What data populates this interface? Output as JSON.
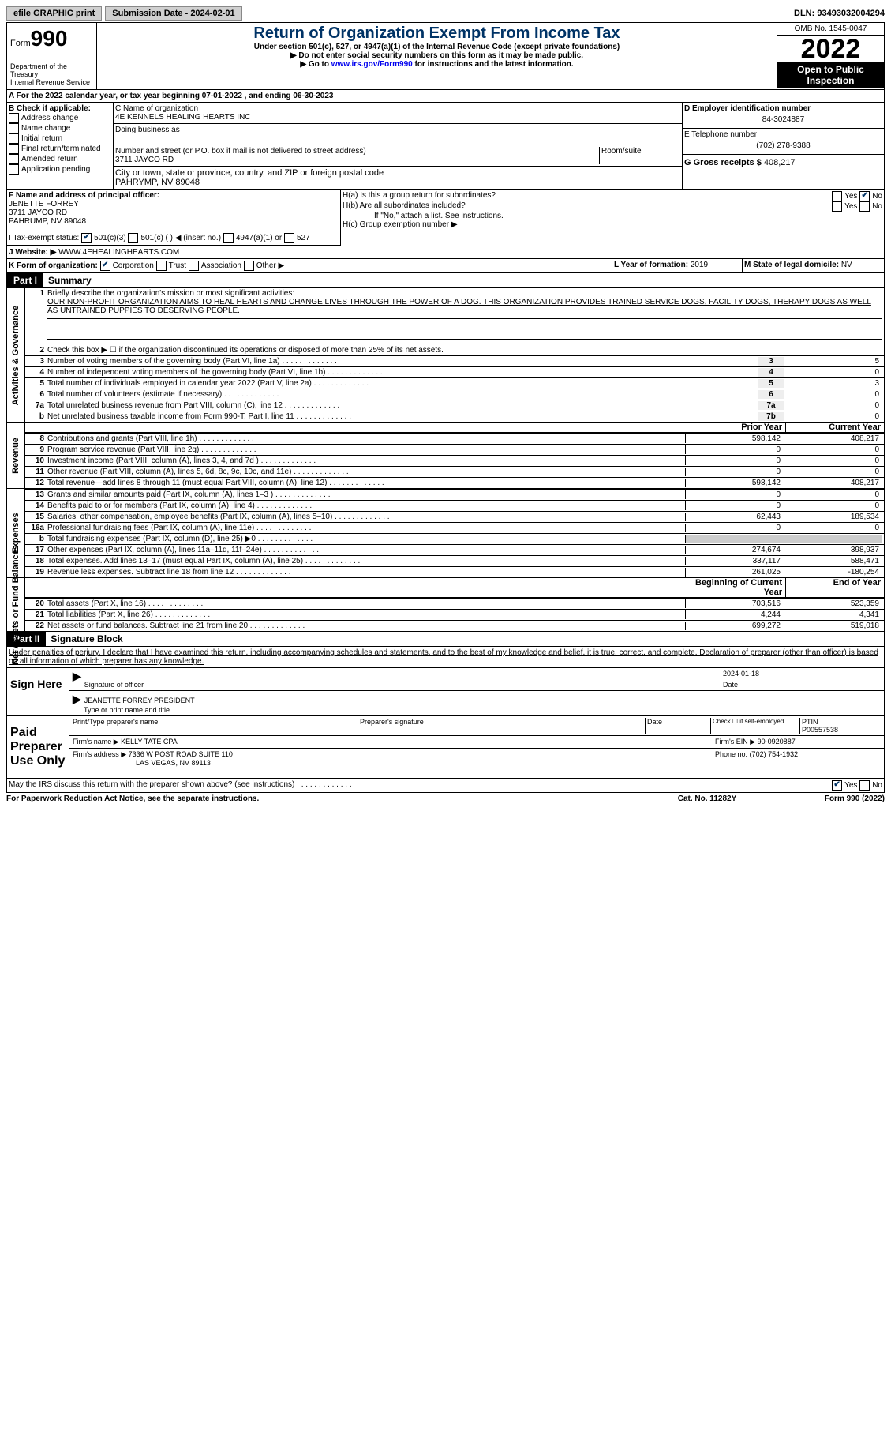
{
  "header": {
    "efile_label": "efile GRAPHIC print",
    "submission_label": "Submission Date - 2024-02-01",
    "dln_label": "DLN: 93493032004294"
  },
  "form": {
    "form_label": "Form",
    "form_num": "990",
    "dept": "Department of the Treasury",
    "irs": "Internal Revenue Service",
    "title": "Return of Organization Exempt From Income Tax",
    "sub1": "Under section 501(c), 527, or 4947(a)(1) of the Internal Revenue Code (except private foundations)",
    "sub2": "▶ Do not enter social security numbers on this form as it may be made public.",
    "sub3_pre": "▶ Go to ",
    "sub3_link": "www.irs.gov/Form990",
    "sub3_post": " for instructions and the latest information.",
    "omb": "OMB No. 1545-0047",
    "year": "2022",
    "inspect1": "Open to Public",
    "inspect2": "Inspection"
  },
  "rowA": {
    "text": "A For the 2022 calendar year, or tax year beginning 07-01-2022    , and ending 06-30-2023"
  },
  "colB": {
    "hdr": "B Check if applicable:",
    "o1": "Address change",
    "o2": "Name change",
    "o3": "Initial return",
    "o4": "Final return/terminated",
    "o5": "Amended return",
    "o6": "Application pending"
  },
  "colC": {
    "name_lbl": "C Name of organization",
    "name": "4E KENNELS HEALING HEARTS INC",
    "dba_lbl": "Doing business as",
    "addr_lbl": "Number and street (or P.O. box if mail is not delivered to street address)",
    "addr": "3711 JAYCO RD",
    "room_lbl": "Room/suite",
    "city_lbl": "City or town, state or province, country, and ZIP or foreign postal code",
    "city": "PAHRYMP, NV  89048"
  },
  "colD": {
    "ein_lbl": "D Employer identification number",
    "ein": "84-3024887",
    "tel_lbl": "E Telephone number",
    "tel": "(702) 278-9388",
    "gross_lbl": "G Gross receipts $",
    "gross": "408,217"
  },
  "rowF": {
    "lbl": "F Name and address of principal officer:",
    "name": "JENETTE FORREY",
    "addr": "3711 JAYCO RD",
    "city": "PAHRUMP, NV  89048"
  },
  "rowH": {
    "ha": "H(a)  Is this a group return for subordinates?",
    "hb": "H(b)  Are all subordinates included?",
    "hb2": "If \"No,\" attach a list. See instructions.",
    "hc": "H(c)  Group exemption number ▶",
    "yes": "Yes",
    "no": "No"
  },
  "rowI": {
    "lbl": "I   Tax-exempt status:",
    "o1": "501(c)(3)",
    "o2": "501(c) (  ) ◀ (insert no.)",
    "o3": "4947(a)(1) or",
    "o4": "527"
  },
  "rowJ": {
    "lbl": "J   Website: ▶",
    "val": "WWW.4EHEALINGHEARTS.COM"
  },
  "rowK": {
    "lbl": "K Form of organization:",
    "o1": "Corporation",
    "o2": "Trust",
    "o3": "Association",
    "o4": "Other ▶",
    "l_lbl": "L Year of formation:",
    "l_val": "2019",
    "m_lbl": "M State of legal domicile:",
    "m_val": "NV"
  },
  "part1": {
    "hdr": "Part I",
    "title": "Summary",
    "l1_lbl": "Briefly describe the organization's mission or most significant activities:",
    "l1_txt": "OUR NON-PROFIT ORGANIZATION AIMS TO HEAL HEARTS AND CHANGE LIVES THROUGH THE POWER OF A DOG. THIS ORGANIZATION PROVIDES TRAINED SERVICE DOGS, FACILITY DOGS, THERAPY DOGS AS WELL AS UNTRAINED PUPPIES TO DESERVING PEOPLE.",
    "l2": "Check this box ▶ ☐ if the organization discontinued its operations or disposed of more than 25% of its net assets.",
    "sec_ag": "Activities & Governance",
    "sec_rev": "Revenue",
    "sec_exp": "Expenses",
    "sec_na": "Net Assets or Fund Balances",
    "prior_hdr": "Prior Year",
    "curr_hdr": "Current Year",
    "beg_hdr": "Beginning of Current Year",
    "end_hdr": "End of Year",
    "lines_ag": [
      {
        "n": "3",
        "t": "Number of voting members of the governing body (Part VI, line 1a)",
        "b": "3",
        "v": "5"
      },
      {
        "n": "4",
        "t": "Number of independent voting members of the governing body (Part VI, line 1b)",
        "b": "4",
        "v": "0"
      },
      {
        "n": "5",
        "t": "Total number of individuals employed in calendar year 2022 (Part V, line 2a)",
        "b": "5",
        "v": "3"
      },
      {
        "n": "6",
        "t": "Total number of volunteers (estimate if necessary)",
        "b": "6",
        "v": "0"
      },
      {
        "n": "7a",
        "t": "Total unrelated business revenue from Part VIII, column (C), line 12",
        "b": "7a",
        "v": "0"
      },
      {
        "n": "b",
        "t": "Net unrelated business taxable income from Form 990-T, Part I, line 11",
        "b": "7b",
        "v": "0"
      }
    ],
    "lines_rev": [
      {
        "n": "8",
        "t": "Contributions and grants (Part VIII, line 1h)",
        "p": "598,142",
        "c": "408,217"
      },
      {
        "n": "9",
        "t": "Program service revenue (Part VIII, line 2g)",
        "p": "0",
        "c": "0"
      },
      {
        "n": "10",
        "t": "Investment income (Part VIII, column (A), lines 3, 4, and 7d )",
        "p": "0",
        "c": "0"
      },
      {
        "n": "11",
        "t": "Other revenue (Part VIII, column (A), lines 5, 6d, 8c, 9c, 10c, and 11e)",
        "p": "0",
        "c": "0"
      },
      {
        "n": "12",
        "t": "Total revenue—add lines 8 through 11 (must equal Part VIII, column (A), line 12)",
        "p": "598,142",
        "c": "408,217"
      }
    ],
    "lines_exp": [
      {
        "n": "13",
        "t": "Grants and similar amounts paid (Part IX, column (A), lines 1–3 )",
        "p": "0",
        "c": "0"
      },
      {
        "n": "14",
        "t": "Benefits paid to or for members (Part IX, column (A), line 4)",
        "p": "0",
        "c": "0"
      },
      {
        "n": "15",
        "t": "Salaries, other compensation, employee benefits (Part IX, column (A), lines 5–10)",
        "p": "62,443",
        "c": "189,534"
      },
      {
        "n": "16a",
        "t": "Professional fundraising fees (Part IX, column (A), line 11e)",
        "p": "0",
        "c": "0"
      },
      {
        "n": "b",
        "t": "Total fundraising expenses (Part IX, column (D), line 25) ▶0",
        "p": "",
        "c": "",
        "shade": true
      },
      {
        "n": "17",
        "t": "Other expenses (Part IX, column (A), lines 11a–11d, 11f–24e)",
        "p": "274,674",
        "c": "398,937"
      },
      {
        "n": "18",
        "t": "Total expenses. Add lines 13–17 (must equal Part IX, column (A), line 25)",
        "p": "337,117",
        "c": "588,471"
      },
      {
        "n": "19",
        "t": "Revenue less expenses. Subtract line 18 from line 12",
        "p": "261,025",
        "c": "-180,254"
      }
    ],
    "lines_na": [
      {
        "n": "20",
        "t": "Total assets (Part X, line 16)",
        "p": "703,516",
        "c": "523,359"
      },
      {
        "n": "21",
        "t": "Total liabilities (Part X, line 26)",
        "p": "4,244",
        "c": "4,341"
      },
      {
        "n": "22",
        "t": "Net assets or fund balances. Subtract line 21 from line 20",
        "p": "699,272",
        "c": "519,018"
      }
    ]
  },
  "part2": {
    "hdr": "Part II",
    "title": "Signature Block",
    "decl": "Under penalties of perjury, I declare that I have examined this return, including accompanying schedules and statements, and to the best of my knowledge and belief, it is true, correct, and complete. Declaration of preparer (other than officer) is based on all information of which preparer has any knowledge.",
    "sign_here": "Sign Here",
    "sig_officer": "Signature of officer",
    "sig_date": "2024-01-18",
    "date_lbl": "Date",
    "officer_name": "JEANETTE FORREY  PRESIDENT",
    "type_lbl": "Type or print name and title",
    "paid_hdr": "Paid Preparer Use Only",
    "prep_name_lbl": "Print/Type preparer's name",
    "prep_sig_lbl": "Preparer's signature",
    "check_if": "Check ☐ if self-employed",
    "ptin_lbl": "PTIN",
    "ptin": "P00557538",
    "firm_name_lbl": "Firm's name     ▶",
    "firm_name": "KELLY TATE CPA",
    "firm_ein_lbl": "Firm's EIN ▶",
    "firm_ein": "90-0920887",
    "firm_addr_lbl": "Firm's address ▶",
    "firm_addr1": "7336 W POST ROAD SUITE 110",
    "firm_addr2": "LAS VEGAS, NV  89113",
    "phone_lbl": "Phone no.",
    "phone": "(702) 754-1932",
    "discuss": "May the IRS discuss this return with the preparer shown above? (see instructions)"
  },
  "footer": {
    "left": "For Paperwork Reduction Act Notice, see the separate instructions.",
    "mid": "Cat. No. 11282Y",
    "right": "Form 990 (2022)"
  }
}
